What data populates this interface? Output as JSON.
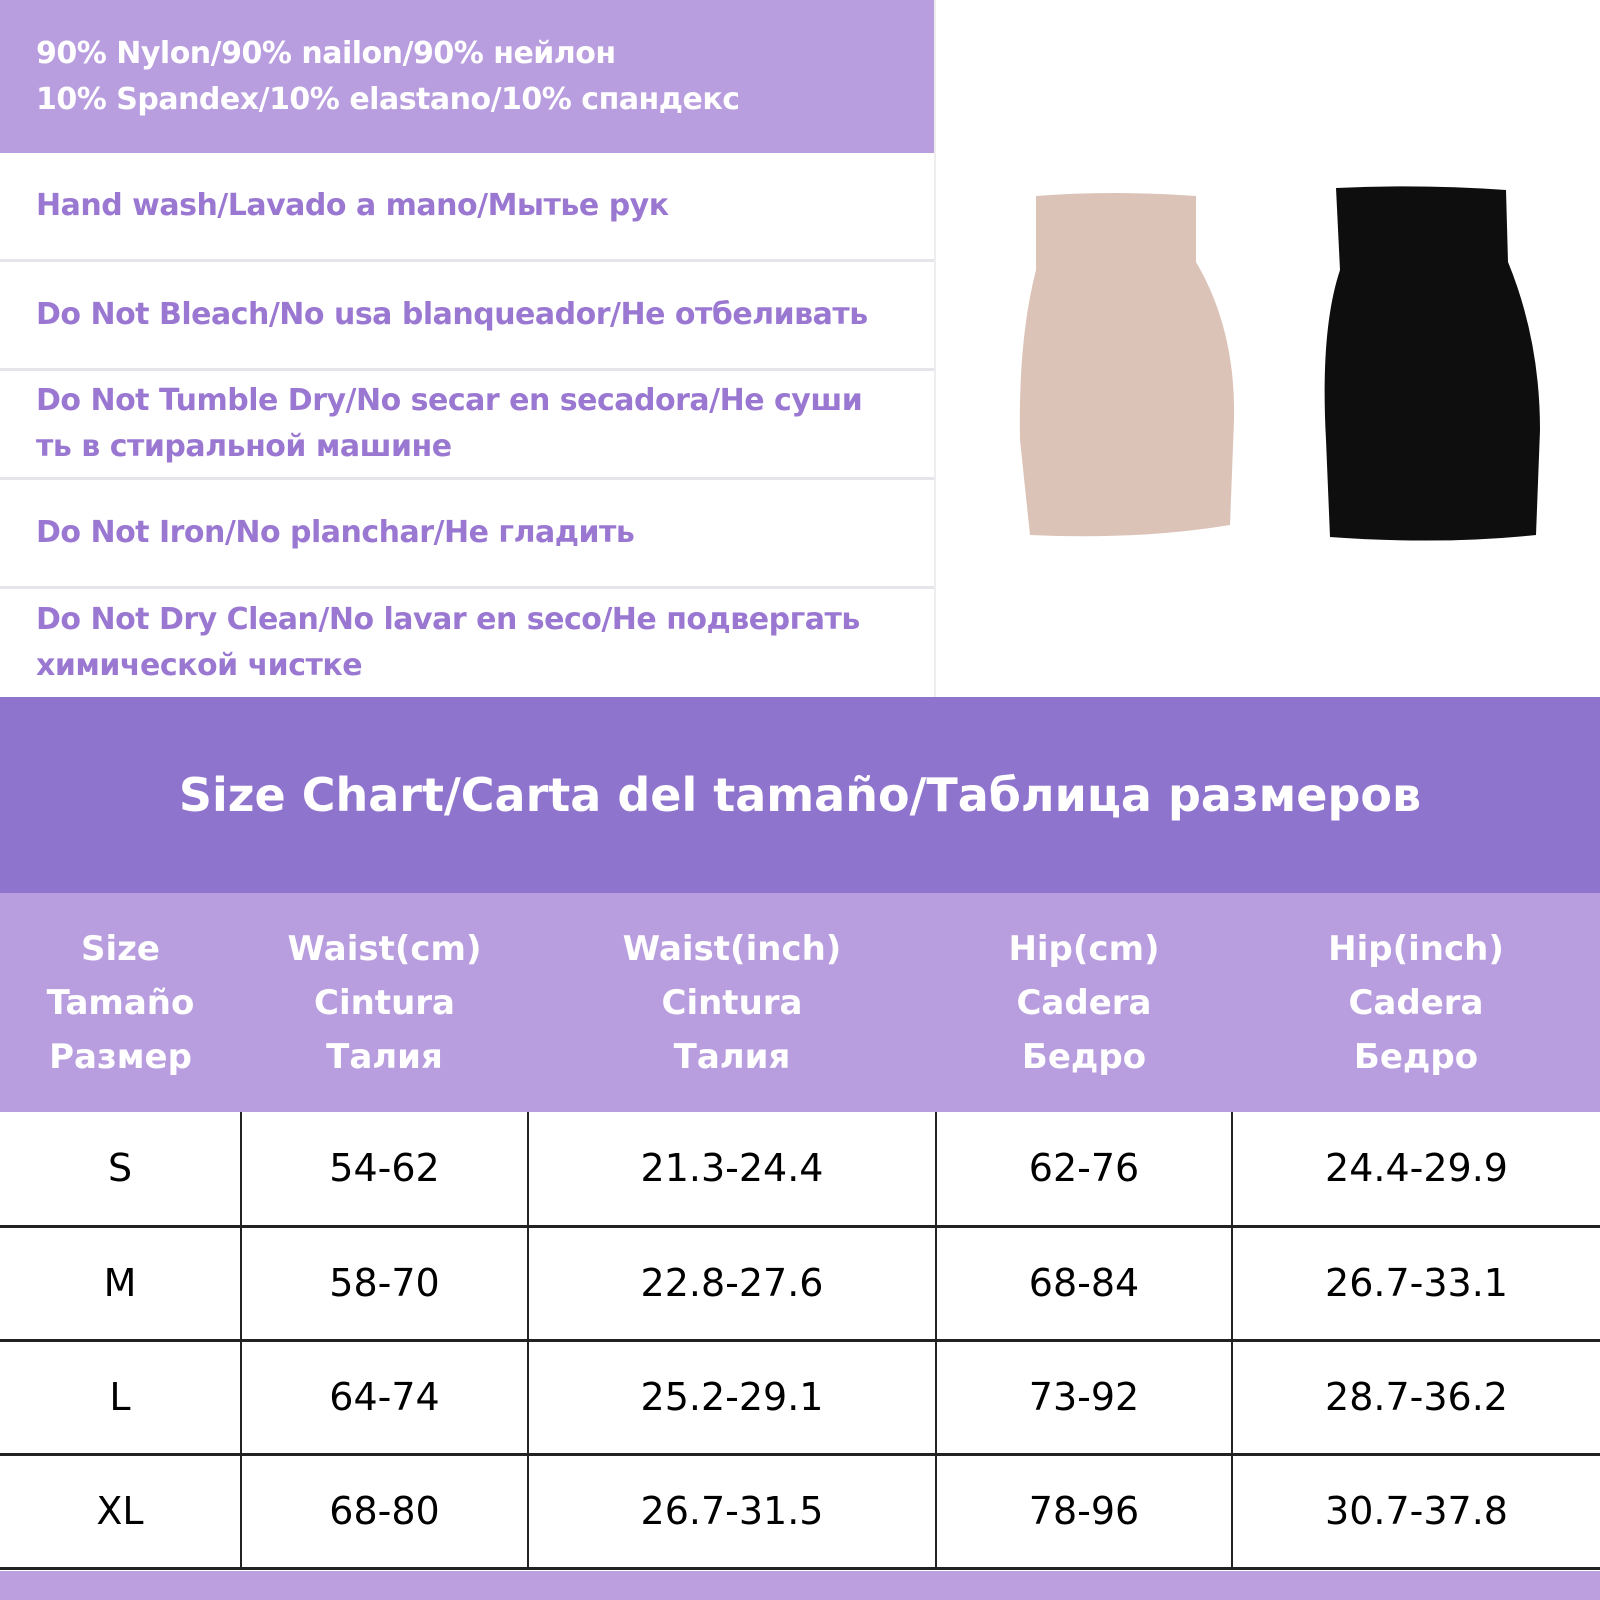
{
  "care": [
    [
      "90% Nylon/90% nailon/90% нейлон",
      "10% Spandex/10% elastano/10% спандекс"
    ],
    [
      "Hand wash/Lavado a mano/Мытье рук"
    ],
    [
      "Do Not Bleach/No usa blanqueador/Не отбеливать"
    ],
    [
      "Do Not Tumble Dry/No secar en secadora/Не суши",
      "ть в стиральной машине"
    ],
    [
      "Do Not Iron/No planchar/Не гладить"
    ],
    [
      "Do Not Dry Clean/No lavar en seco/Не подвергать",
      "химической чистке"
    ]
  ],
  "product_colors": {
    "nude": "#dcc3b8",
    "black": "#0e0e0e"
  },
  "title": "Size Chart/Carta del tamaño/Таблица размеров",
  "table": {
    "headers": [
      [
        "Size",
        "Tamaño",
        "Размер"
      ],
      [
        "Waist(cm)",
        "Cintura",
        "Талия"
      ],
      [
        "Waist(inch)",
        "Cintura",
        "Талия"
      ],
      [
        "Hip(cm)",
        "Cadera",
        "Бедро"
      ],
      [
        "Hip(inch)",
        "Cadera",
        "Бедро"
      ]
    ],
    "rows": [
      [
        "S",
        "54-62",
        "21.3-24.4",
        "62-76",
        "24.4-29.9"
      ],
      [
        "M",
        "58-70",
        "22.8-27.6",
        "68-84",
        "26.7-33.1"
      ],
      [
        "L",
        "64-74",
        "25.2-29.1",
        "73-92",
        "28.7-36.2"
      ],
      [
        "XL",
        "68-80",
        "26.7-31.5",
        "78-96",
        "30.7-37.8"
      ]
    ]
  }
}
